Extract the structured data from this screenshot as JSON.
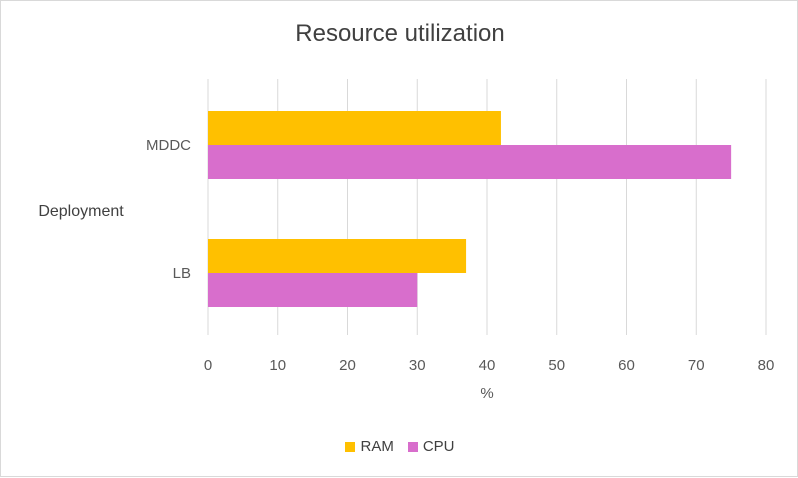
{
  "chart_data": {
    "type": "bar",
    "orientation": "horizontal",
    "title": "Resource utilization",
    "xlabel": "%",
    "ylabel": "Deployment",
    "categories": [
      "MDDC",
      "LB"
    ],
    "series": [
      {
        "name": "RAM",
        "values": [
          42,
          37
        ],
        "color": "#ffc000"
      },
      {
        "name": "CPU",
        "values": [
          75,
          30
        ],
        "color": "#d86ecc"
      }
    ],
    "xlim": [
      0,
      80
    ],
    "xticks": [
      0,
      10,
      20,
      30,
      40,
      50,
      60,
      70,
      80
    ],
    "grid": "vertical",
    "legend": "bottom",
    "gridline_color": "#d9d9d9"
  }
}
